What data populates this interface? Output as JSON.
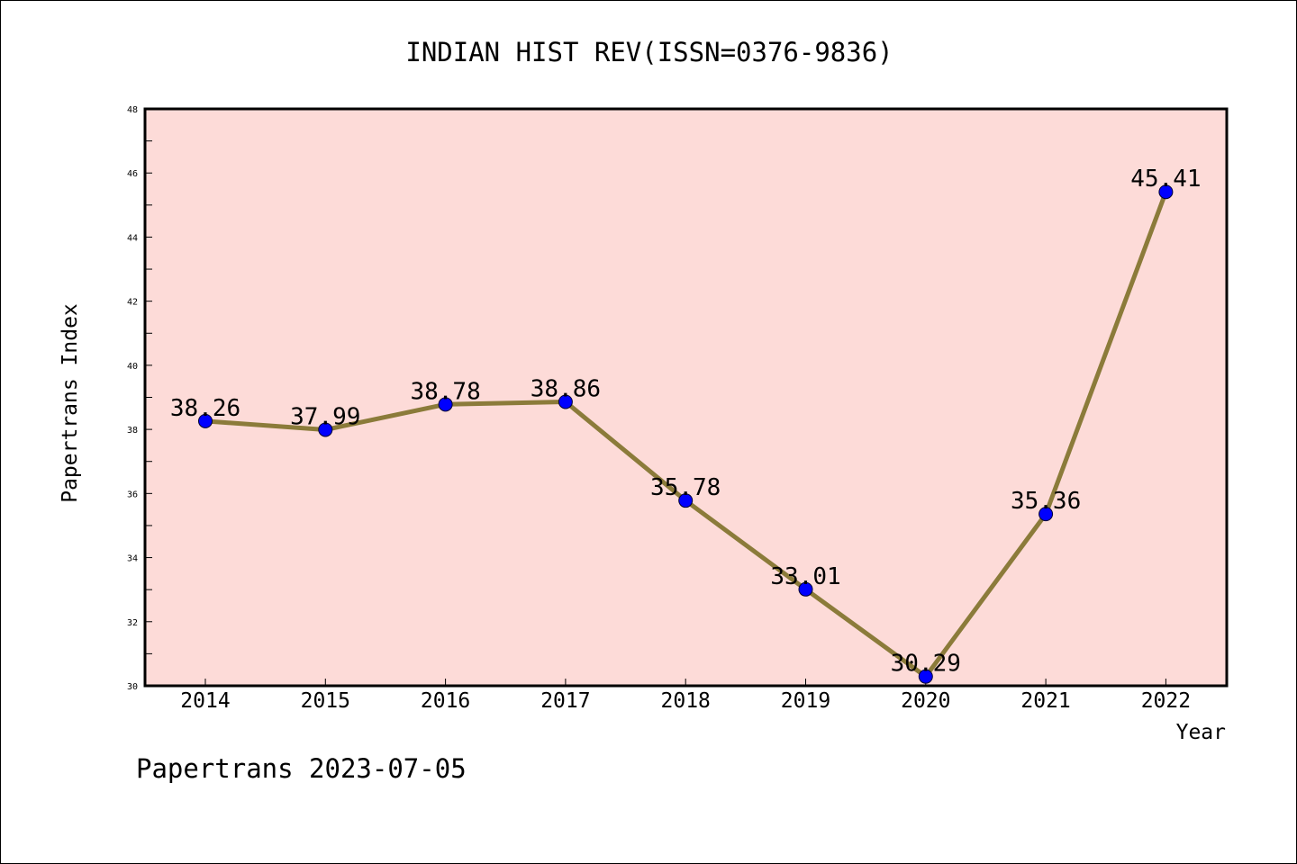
{
  "chart_data": {
    "type": "line",
    "title": "INDIAN HIST REV(ISSN=0376-9836)",
    "xlabel": "Year",
    "ylabel": "Papertrans Index",
    "x": [
      "2014",
      "2015",
      "2016",
      "2017",
      "2018",
      "2019",
      "2020",
      "2021",
      "2022"
    ],
    "series": [
      {
        "values": [
          38.26,
          37.99,
          38.78,
          38.86,
          35.78,
          33.01,
          30.29,
          35.36,
          45.41
        ],
        "labels": [
          "38.26",
          "37.99",
          "38.78",
          "38.86",
          "35.78",
          "33.01",
          "30.29",
          "35.36",
          "45.41"
        ]
      }
    ],
    "ylim": [
      30,
      48
    ],
    "yticks": [
      "30",
      "32",
      "34",
      "36",
      "38",
      "40",
      "42",
      "44",
      "46",
      "48"
    ],
    "grid": false,
    "legend": "none",
    "colors": {
      "plot_background": "#fddbd8",
      "line": "#8b7b3a",
      "marker": "#0000ff",
      "axis": "#000000"
    }
  },
  "footer": "Papertrans 2023-07-05"
}
